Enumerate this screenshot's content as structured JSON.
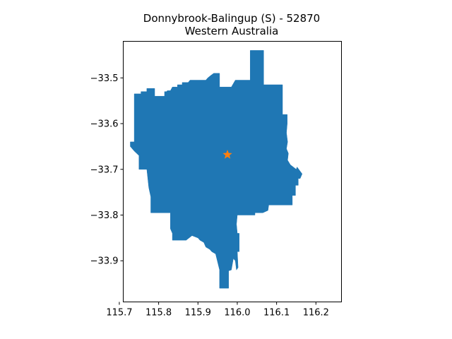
{
  "chart_data": {
    "type": "map",
    "title": "Donnybrook-Balingup (S) - 52870",
    "subtitle": "Western Australia",
    "xlabel": "",
    "ylabel": "",
    "xlim": [
      115.71,
      116.265
    ],
    "ylim": [
      -33.99,
      -33.42
    ],
    "x_ticks": [
      115.7,
      115.8,
      115.9,
      116.0,
      116.1,
      116.2
    ],
    "x_tick_labels": [
      "115.7",
      "115.8",
      "115.9",
      "116.0",
      "116.1",
      "116.2"
    ],
    "y_ticks": [
      -33.5,
      -33.6,
      -33.7,
      -33.8,
      -33.9
    ],
    "y_tick_labels": [
      "−33.5",
      "−33.6",
      "−33.7",
      "−33.8",
      "−33.9"
    ],
    "grid": false,
    "region_color": "#1f77b4",
    "centroid": {
      "lon": 115.975,
      "lat": -33.668,
      "color": "#ff7f0e",
      "marker": "star"
    },
    "region_outline": [
      [
        116.033,
        -33.44
      ],
      [
        116.067,
        -33.44
      ],
      [
        116.067,
        -33.515
      ],
      [
        116.115,
        -33.515
      ],
      [
        116.115,
        -33.58
      ],
      [
        116.127,
        -33.58
      ],
      [
        116.127,
        -33.6
      ],
      [
        116.125,
        -33.62
      ],
      [
        116.128,
        -33.64
      ],
      [
        116.125,
        -33.655
      ],
      [
        116.13,
        -33.665
      ],
      [
        116.128,
        -33.68
      ],
      [
        116.135,
        -33.69
      ],
      [
        116.15,
        -33.7
      ],
      [
        116.152,
        -33.695
      ],
      [
        116.165,
        -33.71
      ],
      [
        116.16,
        -33.72
      ],
      [
        116.155,
        -33.72
      ],
      [
        116.155,
        -33.735
      ],
      [
        116.148,
        -33.735
      ],
      [
        116.148,
        -33.757
      ],
      [
        116.14,
        -33.757
      ],
      [
        116.14,
        -33.778
      ],
      [
        116.115,
        -33.778
      ],
      [
        116.08,
        -33.778
      ],
      [
        116.078,
        -33.79
      ],
      [
        116.065,
        -33.795
      ],
      [
        116.045,
        -33.795
      ],
      [
        116.045,
        -33.8
      ],
      [
        116.025,
        -33.8
      ],
      [
        116.0,
        -33.8
      ],
      [
        115.998,
        -33.82
      ],
      [
        116.0,
        -33.84
      ],
      [
        116.005,
        -33.84
      ],
      [
        116.005,
        -33.88
      ],
      [
        116.0,
        -33.88
      ],
      [
        116.002,
        -33.915
      ],
      [
        115.998,
        -33.92
      ],
      [
        115.995,
        -33.9
      ],
      [
        115.99,
        -33.895
      ],
      [
        115.985,
        -33.92
      ],
      [
        115.978,
        -33.922
      ],
      [
        115.978,
        -33.96
      ],
      [
        115.955,
        -33.96
      ],
      [
        115.955,
        -33.92
      ],
      [
        115.945,
        -33.885
      ],
      [
        115.935,
        -33.88
      ],
      [
        115.93,
        -33.875
      ],
      [
        115.92,
        -33.87
      ],
      [
        115.915,
        -33.86
      ],
      [
        115.905,
        -33.855
      ],
      [
        115.9,
        -33.85
      ],
      [
        115.885,
        -33.845
      ],
      [
        115.87,
        -33.855
      ],
      [
        115.835,
        -33.855
      ],
      [
        115.835,
        -33.84
      ],
      [
        115.83,
        -33.83
      ],
      [
        115.83,
        -33.795
      ],
      [
        115.78,
        -33.795
      ],
      [
        115.78,
        -33.76
      ],
      [
        115.775,
        -33.74
      ],
      [
        115.77,
        -33.7
      ],
      [
        115.75,
        -33.7
      ],
      [
        115.75,
        -33.67
      ],
      [
        115.738,
        -33.66
      ],
      [
        115.728,
        -33.65
      ],
      [
        115.728,
        -33.64
      ],
      [
        115.738,
        -33.64
      ],
      [
        115.738,
        -33.535
      ],
      [
        115.755,
        -33.535
      ],
      [
        115.755,
        -33.53
      ],
      [
        115.77,
        -33.53
      ],
      [
        115.77,
        -33.523
      ],
      [
        115.79,
        -33.523
      ],
      [
        115.79,
        -33.54
      ],
      [
        115.815,
        -33.54
      ],
      [
        115.815,
        -33.53
      ],
      [
        115.82,
        -33.53
      ],
      [
        115.822,
        -33.528
      ],
      [
        115.83,
        -33.528
      ],
      [
        115.835,
        -33.52
      ],
      [
        115.848,
        -33.52
      ],
      [
        115.848,
        -33.515
      ],
      [
        115.86,
        -33.515
      ],
      [
        115.86,
        -33.51
      ],
      [
        115.875,
        -33.51
      ],
      [
        115.88,
        -33.505
      ],
      [
        115.9,
        -33.505
      ],
      [
        115.92,
        -33.505
      ],
      [
        115.925,
        -33.5
      ],
      [
        115.932,
        -33.495
      ],
      [
        115.94,
        -33.49
      ],
      [
        115.955,
        -33.49
      ],
      [
        115.955,
        -33.52
      ],
      [
        115.985,
        -33.52
      ],
      [
        115.995,
        -33.505
      ],
      [
        116.033,
        -33.505
      ]
    ]
  }
}
